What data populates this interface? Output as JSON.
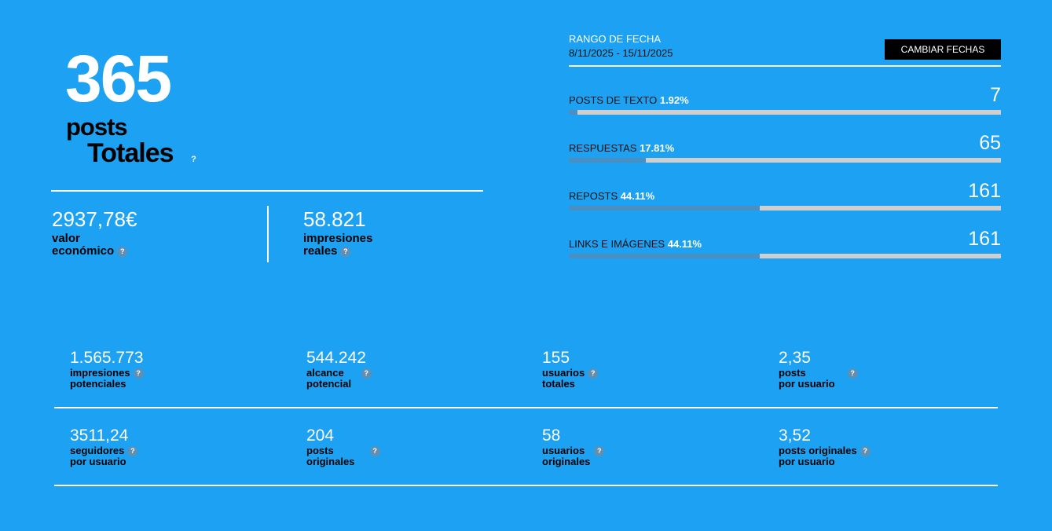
{
  "hero": {
    "value": "365",
    "line1": "posts",
    "line2": "Totales"
  },
  "metrics": [
    {
      "value": "2937,78€",
      "label1": "valor",
      "label2": "económico"
    },
    {
      "value": "58.821",
      "label1": "impresiones",
      "label2": "reales"
    }
  ],
  "range": {
    "title": "RANGO DE FECHA",
    "value": "8/11/2025 - 15/11/2025",
    "button": "CAMBIAR FECHAS"
  },
  "breakdown": [
    {
      "label": "POSTS DE TEXTO",
      "pct": "1.92%",
      "count": "7",
      "fraction": 0.0192
    },
    {
      "label": "RESPUESTAS",
      "pct": "17.81%",
      "count": "65",
      "fraction": 0.1781
    },
    {
      "label": "REPOSTS",
      "pct": "44.11%",
      "count": "161",
      "fraction": 0.4411
    },
    {
      "label": "LINKS E IMÁGENES",
      "pct": "44.11%",
      "count": "161",
      "fraction": 0.4411
    }
  ],
  "stats": [
    {
      "value": "1.565.773",
      "label1": "impresiones",
      "label2": "potenciales"
    },
    {
      "value": "544.242",
      "label1": "alcance",
      "label2": "potencial"
    },
    {
      "value": "155",
      "label1": "usuarios",
      "label2": "totales"
    },
    {
      "value": "2,35",
      "label1": "posts",
      "label2": "por usuario"
    },
    {
      "value": "3511,24",
      "label1": "seguidores",
      "label2": "por usuario"
    },
    {
      "value": "204",
      "label1": "posts",
      "label2": "originales"
    },
    {
      "value": "58",
      "label1": "usuarios",
      "label2": "originales"
    },
    {
      "value": "3,52",
      "label1": "posts originales",
      "label2": "por usuario"
    }
  ],
  "help_glyph": "?"
}
